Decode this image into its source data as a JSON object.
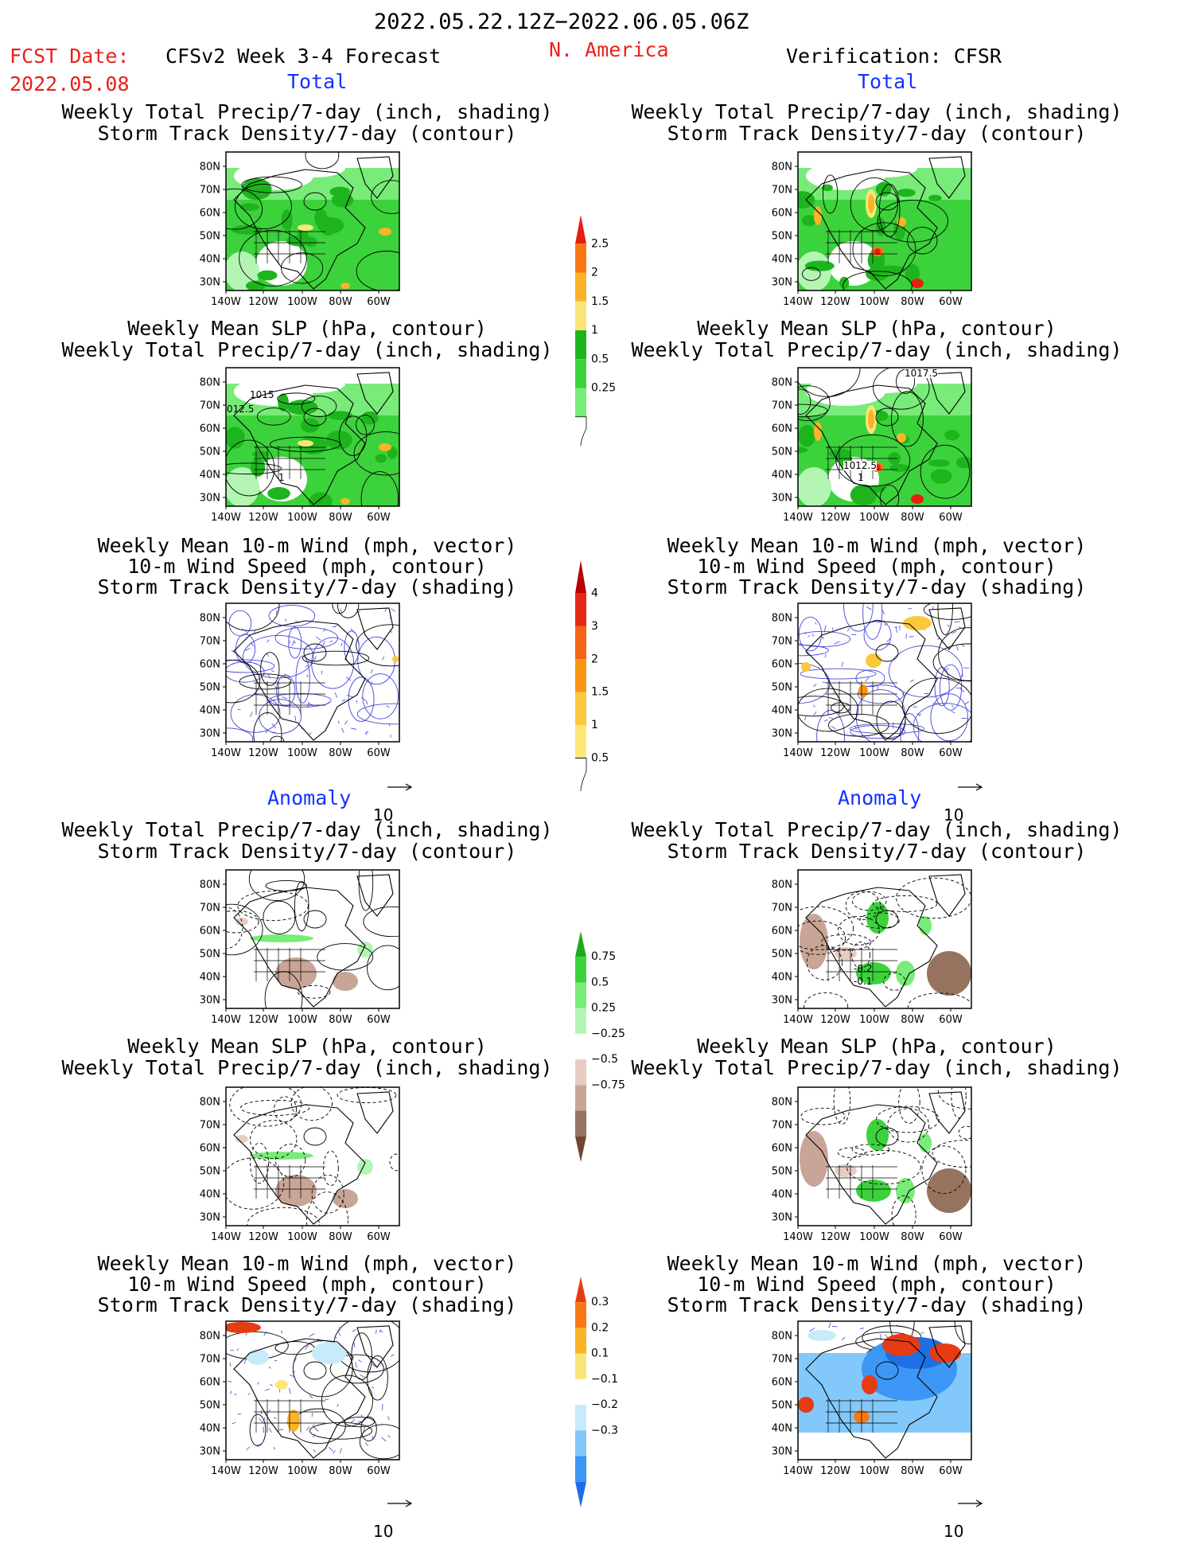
{
  "header": {
    "date_range": "2022.05.22.12Z−2022.06.05.06Z",
    "fcst_label": "FCST Date:",
    "fcst_date": "2022.05.08",
    "model_title": "CFSv2 Week 3-4 Forecast",
    "region": "N. America",
    "verification": "Verification: CFSR"
  },
  "sections": {
    "total_label": "Total",
    "anomaly_label": "Anomaly"
  },
  "panel_titles": {
    "precip_track": [
      "Weekly Total Precip/7-day (inch, shading)",
      "Storm Track Density/7-day (contour)"
    ],
    "slp_precip": [
      "Weekly Mean SLP (hPa, contour)",
      "Weekly Total Precip/7-day (inch, shading)"
    ],
    "wind_track": [
      "Weekly Mean 10-m Wind (mph, vector)",
      "10-m Wind Speed (mph, contour)",
      "Storm Track Density/7-day (shading)"
    ]
  },
  "axes": {
    "lat_ticks": [
      "80N",
      "70N",
      "60N",
      "50N",
      "40N",
      "30N"
    ],
    "lon_ticks": [
      "140W",
      "120W",
      "100W",
      "80W",
      "60W"
    ],
    "vector_ref": "10"
  },
  "contour_labels": {
    "fc_slp_1": "1015",
    "fc_slp_2": "012.5",
    "fc_slp_3": "1",
    "vf_slp_1": "1017.5",
    "vf_slp_2": "1012.5",
    "vf_slp_3": "1",
    "vf_anom_1": "-0.2",
    "vf_anom_2": "-0.1"
  },
  "chart_data": [
    {
      "type": "heatmap",
      "name": "colorbar-total-precip",
      "levels": [
        0.25,
        0.5,
        1,
        1.5,
        2,
        2.5
      ],
      "labels": [
        "0.25",
        "0.5",
        "1",
        "1.5",
        "2",
        "2.5"
      ],
      "colors": [
        "#b4f5b4",
        "#78eb78",
        "#3cd23c",
        "#1eb41e",
        "#fae678",
        "#fab428",
        "#fa7814",
        "#e81e10"
      ]
    },
    {
      "type": "heatmap",
      "name": "colorbar-total-track",
      "levels": [
        0.5,
        1,
        1.5,
        2,
        3,
        4
      ],
      "labels": [
        "0.5",
        "1",
        "1.5",
        "2",
        "3",
        "4"
      ],
      "colors": [
        "#fffab4",
        "#ffe678",
        "#fac83c",
        "#fa9614",
        "#f56414",
        "#e62814",
        "#b40000"
      ]
    },
    {
      "type": "heatmap",
      "name": "colorbar-anom-precip",
      "levels": [
        -0.75,
        -0.5,
        -0.25,
        0.25,
        0.5,
        0.75
      ],
      "labels": [
        "−0.75",
        "−0.5",
        "−0.25",
        "0.25",
        "0.5",
        "0.75"
      ],
      "colors": [
        "#6e4632",
        "#96735f",
        "#c8a596",
        "#e6cdc3",
        "#ffffff",
        "#b4f5b4",
        "#78eb78",
        "#3cd23c",
        "#1eaa1e"
      ]
    },
    {
      "type": "heatmap",
      "name": "colorbar-anom-track",
      "levels": [
        -0.3,
        -0.2,
        -0.1,
        0.1,
        0.2,
        0.3
      ],
      "labels": [
        "−0.3",
        "−0.2",
        "−0.1",
        "0.1",
        "0.2",
        "0.3"
      ],
      "colors": [
        "#1e6ee6",
        "#3c96f5",
        "#82c8fa",
        "#c8eafa",
        "#ffffff",
        "#fae678",
        "#fab428",
        "#fa7814",
        "#e63c14"
      ]
    }
  ]
}
